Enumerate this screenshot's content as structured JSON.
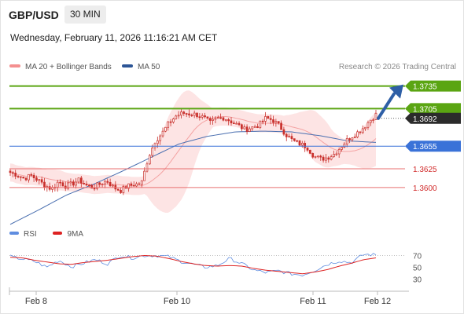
{
  "header": {
    "symbol": "GBP/USD",
    "timeframe": "30 MIN"
  },
  "timestamp": "Wednesday, February 11, 2026 11:16:21 AM CET",
  "legend": {
    "ma20_label": "MA 20 + Bollinger Bands",
    "ma50_label": "MA 50"
  },
  "credit": "Research © 2026 Trading Central",
  "colors": {
    "resistance": "#5aa512",
    "support": "#e86f6f",
    "pivot": "#3a72d8",
    "band_fill": "#fde4e4",
    "ma20": "#f4a3a3",
    "ma50": "#4a6fb0",
    "candle": "#c9302c",
    "current_bg": "#2b2b2b",
    "arrow": "#2e5fa6",
    "rsi": "#5f8de0",
    "rsi_ma": "#dd2222"
  },
  "chart_data": {
    "type": "candlestick",
    "instrument": "GBP/USD",
    "interval": "30 MIN",
    "ylim": [
      1.3555,
      1.3745
    ],
    "x_ticks": [
      "Feb 8",
      "Feb 10",
      "Feb 11",
      "Feb 12"
    ],
    "current_price": 1.3692,
    "levels": [
      {
        "value": 1.3735,
        "label": "1.3735",
        "kind": "resistance"
      },
      {
        "value": 1.3705,
        "label": "1.3705",
        "kind": "resistance"
      },
      {
        "value": 1.3655,
        "label": "1.3655",
        "kind": "pivot"
      },
      {
        "value": 1.3625,
        "label": "1.3625",
        "kind": "support"
      },
      {
        "value": 1.36,
        "label": "1.3600",
        "kind": "support"
      }
    ],
    "price_key": [
      1.362,
      1.3617,
      1.3612,
      1.3616,
      1.361,
      1.3603,
      1.3598,
      1.3608,
      1.3602,
      1.3605,
      1.361,
      1.3603,
      1.36,
      1.3605,
      1.3609,
      1.36,
      1.3596,
      1.3602,
      1.3604,
      1.3605,
      1.364,
      1.3662,
      1.3672,
      1.3686,
      1.3695,
      1.3699,
      1.3698,
      1.3697,
      1.3693,
      1.3686,
      1.3692,
      1.3693,
      1.3688,
      1.3683,
      1.3677,
      1.368,
      1.3683,
      1.3692,
      1.369,
      1.3682,
      1.367,
      1.3662,
      1.3658,
      1.3654,
      1.3642,
      1.3638,
      1.364,
      1.3645,
      1.3655,
      1.3665,
      1.3671,
      1.3678,
      1.3688,
      1.3697
    ],
    "ma50_key": [
      1.3551,
      1.357,
      1.359,
      1.3605,
      1.3622,
      1.364,
      1.3658,
      1.3668,
      1.3674,
      1.3675,
      1.3674,
      1.3669,
      1.3662,
      1.366
    ],
    "rsi": {
      "labels": [
        "RSI",
        "9MA"
      ],
      "levels": [
        70,
        50,
        30
      ],
      "rsi_key": [
        68,
        64,
        60,
        50,
        62,
        51,
        57,
        63,
        56,
        70,
        66,
        70,
        70,
        68,
        60,
        55,
        50,
        53,
        65,
        56,
        45,
        41,
        44,
        39,
        37,
        45,
        55,
        61,
        58,
        72,
        71
      ],
      "ma_key": [
        67,
        66,
        62,
        59,
        56,
        55,
        58,
        60,
        62,
        65,
        68,
        70,
        69,
        65,
        60,
        56,
        53,
        52,
        53,
        52,
        48,
        45,
        43,
        41,
        39,
        42,
        46,
        52,
        57,
        63,
        66
      ]
    }
  }
}
